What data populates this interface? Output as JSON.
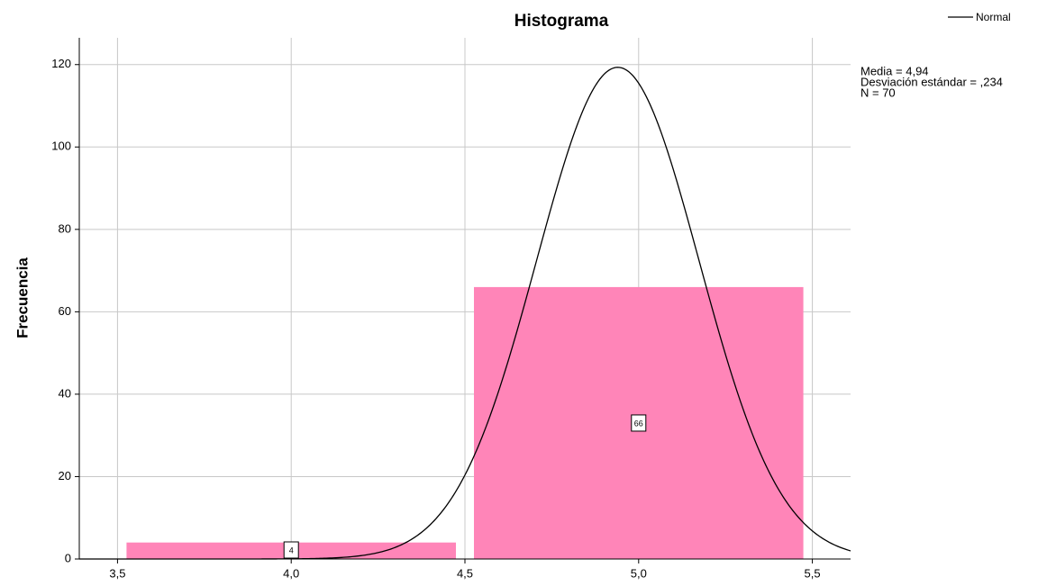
{
  "chart_data": {
    "type": "histogram",
    "title": "Histograma",
    "y_label": "Frecuencia",
    "bins": [
      3.5,
      4.5,
      5.5
    ],
    "values": [
      4,
      66
    ],
    "color": "#ff85b8",
    "series": [
      {
        "name": "Normal",
        "color": "#000000"
      }
    ],
    "stats": [
      {
        "value": 4.94,
        "label": "Media = 4,94"
      },
      {
        "value": 0.234,
        "label": "Desviación estándar = ,234"
      },
      {
        "value": 70,
        "label": "N = 70"
      }
    ],
    "xlim": [
      3.39,
      5.61
    ],
    "xticks": [
      {
        "value": 3.5,
        "label": "3,5"
      },
      {
        "value": 4.0,
        "label": "4,0"
      },
      {
        "value": 4.5,
        "label": "4,5"
      },
      {
        "value": 5.0,
        "label": "5,0"
      },
      {
        "value": 5.5,
        "label": "5,5"
      }
    ],
    "ylim": [
      0,
      126.5
    ],
    "yticks": [
      0,
      20,
      40,
      60,
      80,
      100,
      120
    ],
    "grid": true,
    "legend": "top-right"
  }
}
